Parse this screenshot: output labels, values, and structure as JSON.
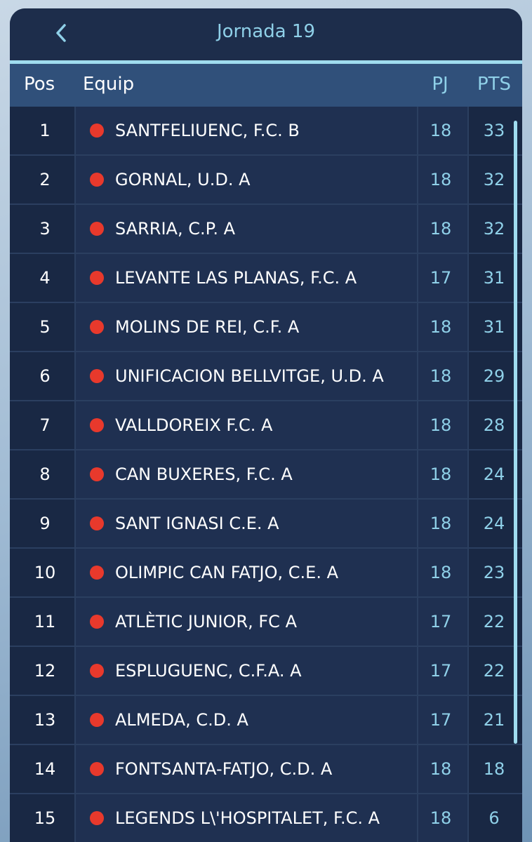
{
  "header": {
    "title": "Jornada 19"
  },
  "table": {
    "columns": [
      "Pos",
      "Equip",
      "PJ",
      "PTS"
    ],
    "rows": [
      [
        1,
        "SANTFELIUENC, F.C. B",
        18,
        33
      ],
      [
        2,
        "GORNAL, U.D. A",
        18,
        32
      ],
      [
        3,
        "SARRIA, C.P. A",
        18,
        32
      ],
      [
        4,
        "LEVANTE LAS PLANAS, F.C. A",
        17,
        31
      ],
      [
        5,
        "MOLINS DE REI, C.F. A",
        18,
        31
      ],
      [
        6,
        "UNIFICACION BELLVITGE, U.D. A",
        18,
        29
      ],
      [
        7,
        "VALLDOREIX F.C. A",
        18,
        28
      ],
      [
        8,
        "CAN BUXERES, F.C. A",
        18,
        24
      ],
      [
        9,
        "SANT IGNASI C.E. A",
        18,
        24
      ],
      [
        10,
        "OLIMPIC CAN FATJO, C.E. A",
        18,
        23
      ],
      [
        11,
        "ATLÈTIC JUNIOR, FC A",
        17,
        22
      ],
      [
        12,
        "ESPLUGUENC, C.F.A. A",
        17,
        22
      ],
      [
        13,
        "ALMEDA, C.D. A",
        17,
        21
      ],
      [
        14,
        "FONTSANTA-FATJO, C.D. A",
        18,
        18
      ],
      [
        15,
        "LEGENDS L\\'HOSPITALET, F.C. A",
        18,
        6
      ]
    ]
  }
}
